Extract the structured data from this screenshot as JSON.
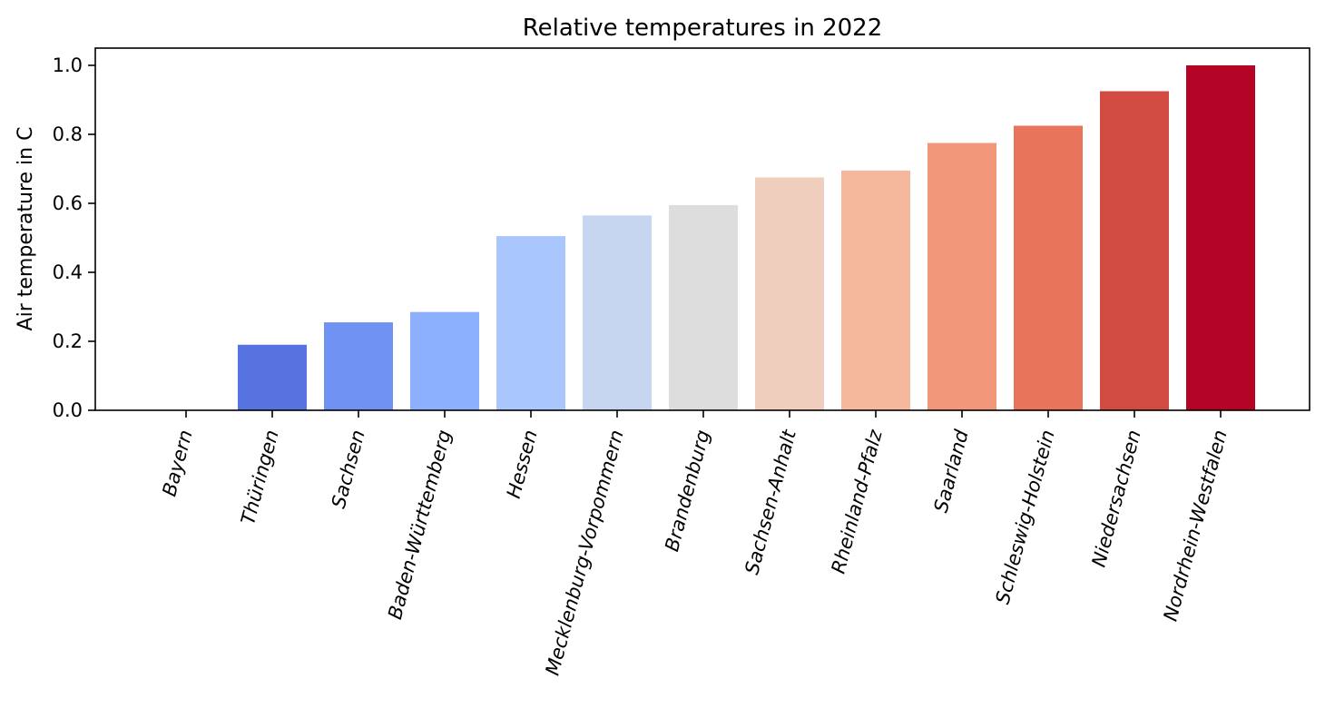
{
  "chart_data": {
    "type": "bar",
    "title": "Relative temperatures in 2022",
    "xlabel": "",
    "ylabel": "Air temperature in C",
    "ylim": [
      0,
      1.05
    ],
    "yticks": [
      "0.0",
      "0.2",
      "0.4",
      "0.6",
      "0.8",
      "1.0"
    ],
    "grid": false,
    "categories": [
      "Bayern",
      "Thüringen",
      "Sachsen",
      "Baden-Württemberg",
      "Hessen",
      "Mecklenburg-Vorpommern",
      "Brandenburg",
      "Sachsen-Anhalt",
      "Rheinland-Pfalz",
      "Saarland",
      "Schleswig-Holstein",
      "Niedersachsen",
      "Nordrhein-Westfalen"
    ],
    "values": [
      0.0,
      0.19,
      0.255,
      0.285,
      0.505,
      0.565,
      0.595,
      0.675,
      0.695,
      0.775,
      0.825,
      0.925,
      1.0
    ],
    "colors": [
      "#3b4cc0",
      "#5673e0",
      "#7093f3",
      "#8db0fe",
      "#aac7fd",
      "#c6d6f1",
      "#dddddd",
      "#efcebd",
      "#f6b89c",
      "#f3977b",
      "#e7745b",
      "#d24b40",
      "#b40426"
    ]
  }
}
